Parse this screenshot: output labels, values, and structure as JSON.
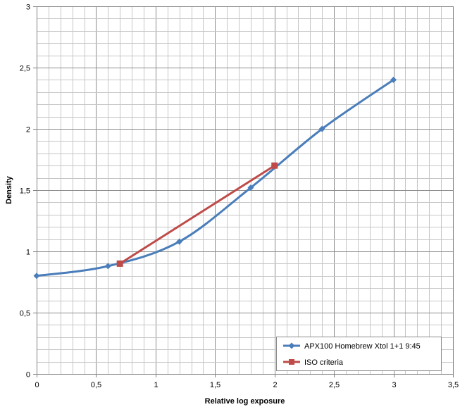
{
  "chart_data": {
    "type": "scatter",
    "xlabel": "Relative log exposure",
    "ylabel": "Density",
    "xlim": [
      0,
      3.5
    ],
    "ylim": [
      0,
      3
    ],
    "x_ticks": [
      "0",
      "0,5",
      "1",
      "1,5",
      "2",
      "2,5",
      "3",
      "3,5"
    ],
    "y_ticks": [
      "0",
      "0,5",
      "1",
      "1,5",
      "2",
      "2,5",
      "3"
    ],
    "x_tick_values": [
      0,
      0.5,
      1,
      1.5,
      2,
      2.5,
      3,
      3.5
    ],
    "y_tick_values": [
      0,
      0.5,
      1,
      1.5,
      2,
      2.5,
      3
    ],
    "grid": true,
    "legend_position": "bottom-right",
    "series": [
      {
        "name": "APX100 Homebrew Xtol 1+1 9:45",
        "color": "#4a7ebb",
        "marker": "diamond",
        "smooth": true,
        "x": [
          0,
          0.6,
          1.2,
          1.8,
          2.4,
          3.0
        ],
        "y": [
          0.8,
          0.88,
          1.08,
          1.52,
          2.0,
          2.4
        ]
      },
      {
        "name": "ISO criteria",
        "color": "#be4b48",
        "marker": "square",
        "smooth": false,
        "x": [
          0.7,
          2.0
        ],
        "y": [
          0.9,
          1.7
        ]
      }
    ]
  }
}
